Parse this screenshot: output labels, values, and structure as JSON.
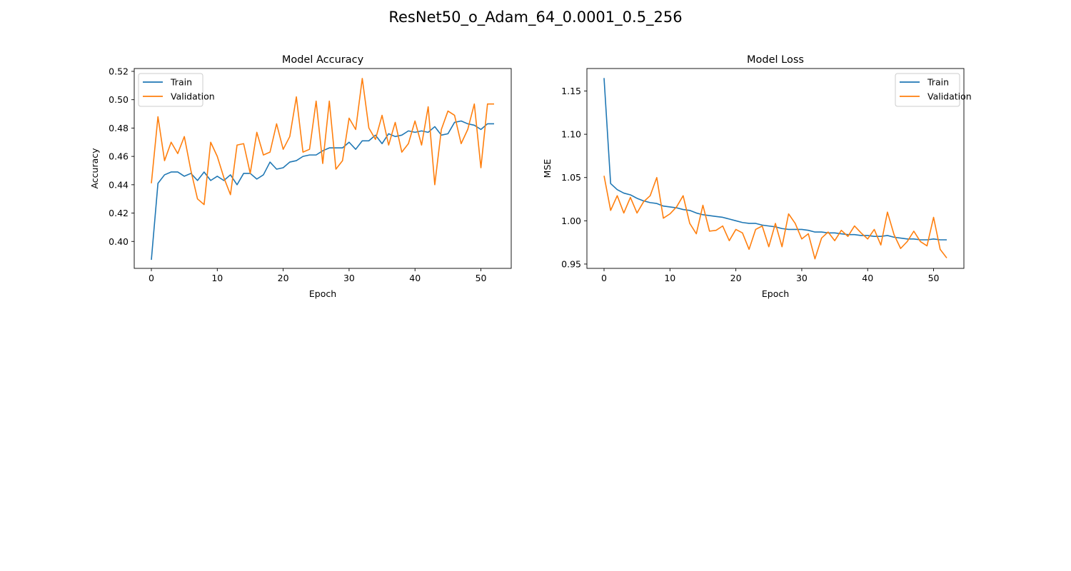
{
  "figure": {
    "title": "ResNet50_o_Adam_64_0.0001_0.5_256"
  },
  "colors": {
    "train": "#1f77b4",
    "validation": "#ff7f0e",
    "axis": "#000000"
  },
  "chart_data": [
    {
      "type": "line",
      "title": "Model Accuracy",
      "xlabel": "Epoch",
      "ylabel": "Accuracy",
      "xlim": [
        -2.6,
        54.6
      ],
      "ylim": [
        0.381,
        0.522
      ],
      "xticks": [
        0,
        10,
        20,
        30,
        40,
        50
      ],
      "yticks": [
        0.4,
        0.42,
        0.44,
        0.46,
        0.48,
        0.5,
        0.52
      ],
      "ytick_labels": [
        "0.40",
        "0.42",
        "0.44",
        "0.46",
        "0.48",
        "0.50",
        "0.52"
      ],
      "legend": "upper left",
      "grid": false,
      "series": [
        {
          "name": "Train",
          "values": [
            0.387,
            0.441,
            0.447,
            0.449,
            0.449,
            0.446,
            0.448,
            0.443,
            0.449,
            0.443,
            0.446,
            0.443,
            0.447,
            0.44,
            0.448,
            0.448,
            0.444,
            0.447,
            0.456,
            0.451,
            0.452,
            0.456,
            0.457,
            0.46,
            0.461,
            0.461,
            0.464,
            0.466,
            0.466,
            0.466,
            0.47,
            0.465,
            0.471,
            0.471,
            0.475,
            0.469,
            0.476,
            0.474,
            0.475,
            0.478,
            0.477,
            0.478,
            0.477,
            0.481,
            0.475,
            0.476,
            0.484,
            0.485,
            0.483,
            0.482,
            0.479,
            0.483,
            0.483
          ]
        },
        {
          "name": "Validation",
          "values": [
            0.441,
            0.488,
            0.457,
            0.47,
            0.462,
            0.474,
            0.45,
            0.43,
            0.426,
            0.47,
            0.46,
            0.445,
            0.433,
            0.468,
            0.469,
            0.448,
            0.477,
            0.461,
            0.463,
            0.483,
            0.465,
            0.474,
            0.502,
            0.463,
            0.465,
            0.499,
            0.455,
            0.499,
            0.451,
            0.457,
            0.487,
            0.479,
            0.515,
            0.48,
            0.472,
            0.489,
            0.468,
            0.484,
            0.463,
            0.469,
            0.485,
            0.468,
            0.495,
            0.44,
            0.479,
            0.492,
            0.489,
            0.469,
            0.479,
            0.497,
            0.452,
            0.497,
            0.497
          ]
        }
      ]
    },
    {
      "type": "line",
      "title": "Model Loss",
      "xlabel": "Epoch",
      "ylabel": "MSE",
      "xlim": [
        -2.6,
        54.6
      ],
      "ylim": [
        0.945,
        1.176
      ],
      "xticks": [
        0,
        10,
        20,
        30,
        40,
        50
      ],
      "yticks": [
        0.95,
        1.0,
        1.05,
        1.1,
        1.15
      ],
      "ytick_labels": [
        "0.95",
        "1.00",
        "1.05",
        "1.10",
        "1.15"
      ],
      "legend": "upper right",
      "grid": false,
      "series": [
        {
          "name": "Train",
          "values": [
            1.165,
            1.043,
            1.036,
            1.032,
            1.03,
            1.026,
            1.023,
            1.021,
            1.02,
            1.017,
            1.016,
            1.015,
            1.013,
            1.012,
            1.009,
            1.007,
            1.006,
            1.005,
            1.004,
            1.002,
            1.0,
            0.998,
            0.997,
            0.997,
            0.995,
            0.994,
            0.993,
            0.991,
            0.99,
            0.99,
            0.99,
            0.989,
            0.987,
            0.987,
            0.986,
            0.986,
            0.985,
            0.984,
            0.984,
            0.983,
            0.983,
            0.982,
            0.982,
            0.983,
            0.981,
            0.98,
            0.979,
            0.979,
            0.978,
            0.978,
            0.979,
            0.978,
            0.978
          ]
        },
        {
          "name": "Validation",
          "values": [
            1.052,
            1.012,
            1.029,
            1.009,
            1.027,
            1.009,
            1.022,
            1.029,
            1.05,
            1.003,
            1.008,
            1.016,
            1.029,
            0.997,
            0.985,
            1.018,
            0.988,
            0.989,
            0.994,
            0.977,
            0.99,
            0.986,
            0.967,
            0.99,
            0.994,
            0.97,
            0.997,
            0.97,
            1.008,
            0.997,
            0.979,
            0.985,
            0.956,
            0.98,
            0.987,
            0.977,
            0.989,
            0.982,
            0.994,
            0.986,
            0.979,
            0.99,
            0.972,
            1.01,
            0.984,
            0.968,
            0.976,
            0.988,
            0.976,
            0.971,
            1.004,
            0.967,
            0.957
          ]
        }
      ]
    }
  ]
}
